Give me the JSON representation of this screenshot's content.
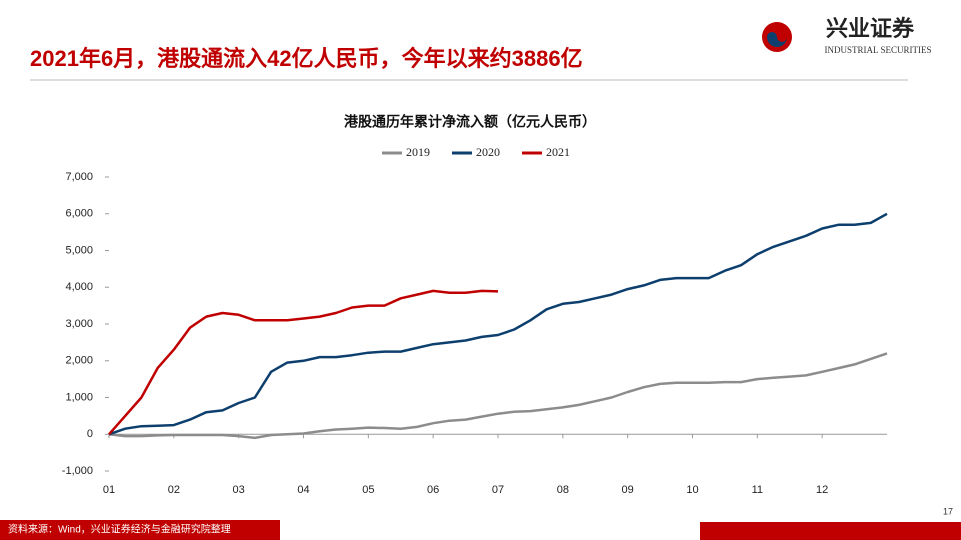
{
  "header": {
    "title": "2021年6月，港股通流入42亿人民币，今年以来约3886亿",
    "logo_cn": "兴业证券",
    "logo_en": "INDUSTRIAL SECURITIES"
  },
  "chart_data": {
    "type": "line",
    "title": "港股通历年累计净流入额（亿元人民币）",
    "categories": [
      "01",
      null,
      null,
      null,
      "02",
      null,
      null,
      null,
      "03",
      null,
      null,
      null,
      "04",
      null,
      null,
      null,
      "05",
      null,
      null,
      null,
      "06",
      null,
      null,
      null,
      "07",
      null,
      null,
      null,
      "08",
      null,
      null,
      null,
      "09",
      null,
      null,
      null,
      "10",
      null,
      null,
      null,
      "11",
      null,
      null,
      null,
      "12",
      null,
      null,
      null,
      null
    ],
    "series": [
      {
        "name": "2019",
        "color": "#8c8c8c",
        "values": [
          0,
          -50,
          -50,
          -30,
          -20,
          -20,
          -20,
          -20,
          -50,
          -100,
          -20,
          0,
          20,
          80,
          130,
          150,
          180,
          170,
          150,
          200,
          300,
          370,
          400,
          480,
          560,
          610,
          630,
          680,
          730,
          800,
          900,
          1000,
          1150,
          1280,
          1370,
          1400,
          1400,
          1400,
          1420,
          1420,
          1500,
          1540,
          1570,
          1600,
          1700,
          1800,
          1900,
          2050,
          2200
        ]
      },
      {
        "name": "2020",
        "color": "#0d3f6e",
        "values": [
          0,
          150,
          220,
          230,
          250,
          400,
          600,
          650,
          850,
          1000,
          1700,
          1950,
          2000,
          2100,
          2100,
          2150,
          2220,
          2250,
          2250,
          2350,
          2450,
          2500,
          2550,
          2650,
          2700,
          2850,
          3100,
          3400,
          3550,
          3600,
          3700,
          3800,
          3950,
          4050,
          4200,
          4250,
          4250,
          4250,
          4450,
          4600,
          4900,
          5100,
          5250,
          5400,
          5600,
          5700,
          5700,
          5750,
          6000
        ]
      },
      {
        "name": "2021",
        "color": "#c00000",
        "values": [
          0,
          500,
          1000,
          1800,
          2300,
          2900,
          3200,
          3300,
          3250,
          3100,
          3100,
          3100,
          3150,
          3200,
          3300,
          3450,
          3500,
          3500,
          3700,
          3800,
          3900,
          3850,
          3850,
          3900,
          3886,
          null,
          null,
          null,
          null,
          null,
          null,
          null,
          null,
          null,
          null,
          null,
          null,
          null,
          null,
          null,
          null,
          null,
          null,
          null,
          null,
          null,
          null,
          null,
          null
        ]
      }
    ],
    "ylim": [
      -1000,
      7000
    ],
    "yticks": [
      {
        "value": -1000,
        "label": "-1,000"
      },
      0,
      {
        "value": 1000,
        "label": "1,000"
      },
      {
        "value": 2000,
        "label": "2,000"
      },
      {
        "value": 3000,
        "label": "3,000"
      },
      {
        "value": 4000,
        "label": "4,000"
      },
      {
        "value": 5000,
        "label": "5,000"
      },
      {
        "value": 6000,
        "label": "6,000"
      },
      {
        "value": 7000,
        "label": "7,000"
      }
    ],
    "legend": "top"
  },
  "footer": {
    "source": "资料来源：Wind，兴业证券经济与金融研究院整理",
    "page": "17"
  }
}
